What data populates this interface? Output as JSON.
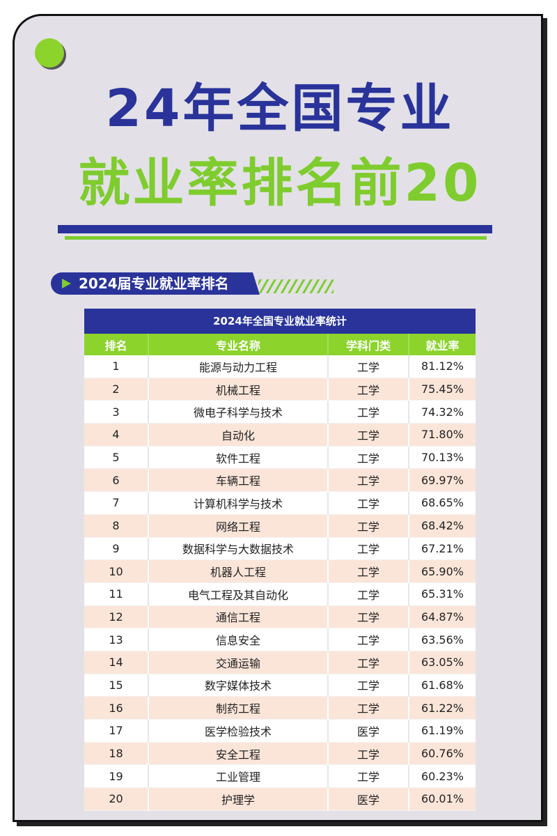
{
  "header": {
    "title_line1": "24年全国专业",
    "title_line2": "就业率排名前20"
  },
  "section": {
    "label": "2024届专业就业率排名"
  },
  "table": {
    "caption": "2024年全国专业就业率统计",
    "columns": [
      "排名",
      "专业名称",
      "学科门类",
      "就业率"
    ],
    "rows": [
      {
        "rank": "1",
        "major": "能源与动力工程",
        "category": "工学",
        "rate": "81.12%"
      },
      {
        "rank": "2",
        "major": "机械工程",
        "category": "工学",
        "rate": "75.45%"
      },
      {
        "rank": "3",
        "major": "微电子科学与技术",
        "category": "工学",
        "rate": "74.32%"
      },
      {
        "rank": "4",
        "major": "自动化",
        "category": "工学",
        "rate": "71.80%"
      },
      {
        "rank": "5",
        "major": "软件工程",
        "category": "工学",
        "rate": "70.13%"
      },
      {
        "rank": "6",
        "major": "车辆工程",
        "category": "工学",
        "rate": "69.97%"
      },
      {
        "rank": "7",
        "major": "计算机科学与技术",
        "category": "工学",
        "rate": "68.65%"
      },
      {
        "rank": "8",
        "major": "网络工程",
        "category": "工学",
        "rate": "68.42%"
      },
      {
        "rank": "9",
        "major": "数据科学与大数据技术",
        "category": "工学",
        "rate": "67.21%"
      },
      {
        "rank": "10",
        "major": "机器人工程",
        "category": "工学",
        "rate": "65.90%"
      },
      {
        "rank": "11",
        "major": "电气工程及其自动化",
        "category": "工学",
        "rate": "65.31%"
      },
      {
        "rank": "12",
        "major": "通信工程",
        "category": "工学",
        "rate": "64.87%"
      },
      {
        "rank": "13",
        "major": "信息安全",
        "category": "工学",
        "rate": "63.56%"
      },
      {
        "rank": "14",
        "major": "交通运输",
        "category": "工学",
        "rate": "63.05%"
      },
      {
        "rank": "15",
        "major": "数字媒体技术",
        "category": "工学",
        "rate": "61.68%"
      },
      {
        "rank": "16",
        "major": "制药工程",
        "category": "工学",
        "rate": "61.22%"
      },
      {
        "rank": "17",
        "major": "医学检验技术",
        "category": "医学",
        "rate": "61.19%"
      },
      {
        "rank": "18",
        "major": "安全工程",
        "category": "工学",
        "rate": "60.76%"
      },
      {
        "rank": "19",
        "major": "工业管理",
        "category": "工学",
        "rate": "60.23%"
      },
      {
        "rank": "20",
        "major": "护理学",
        "category": "医学",
        "rate": "60.01%"
      }
    ]
  },
  "colors": {
    "navy": "#29339a",
    "green": "#7fcc2e",
    "row_alt": "#fbe5d9",
    "card_bg": "#e3e1e7"
  }
}
